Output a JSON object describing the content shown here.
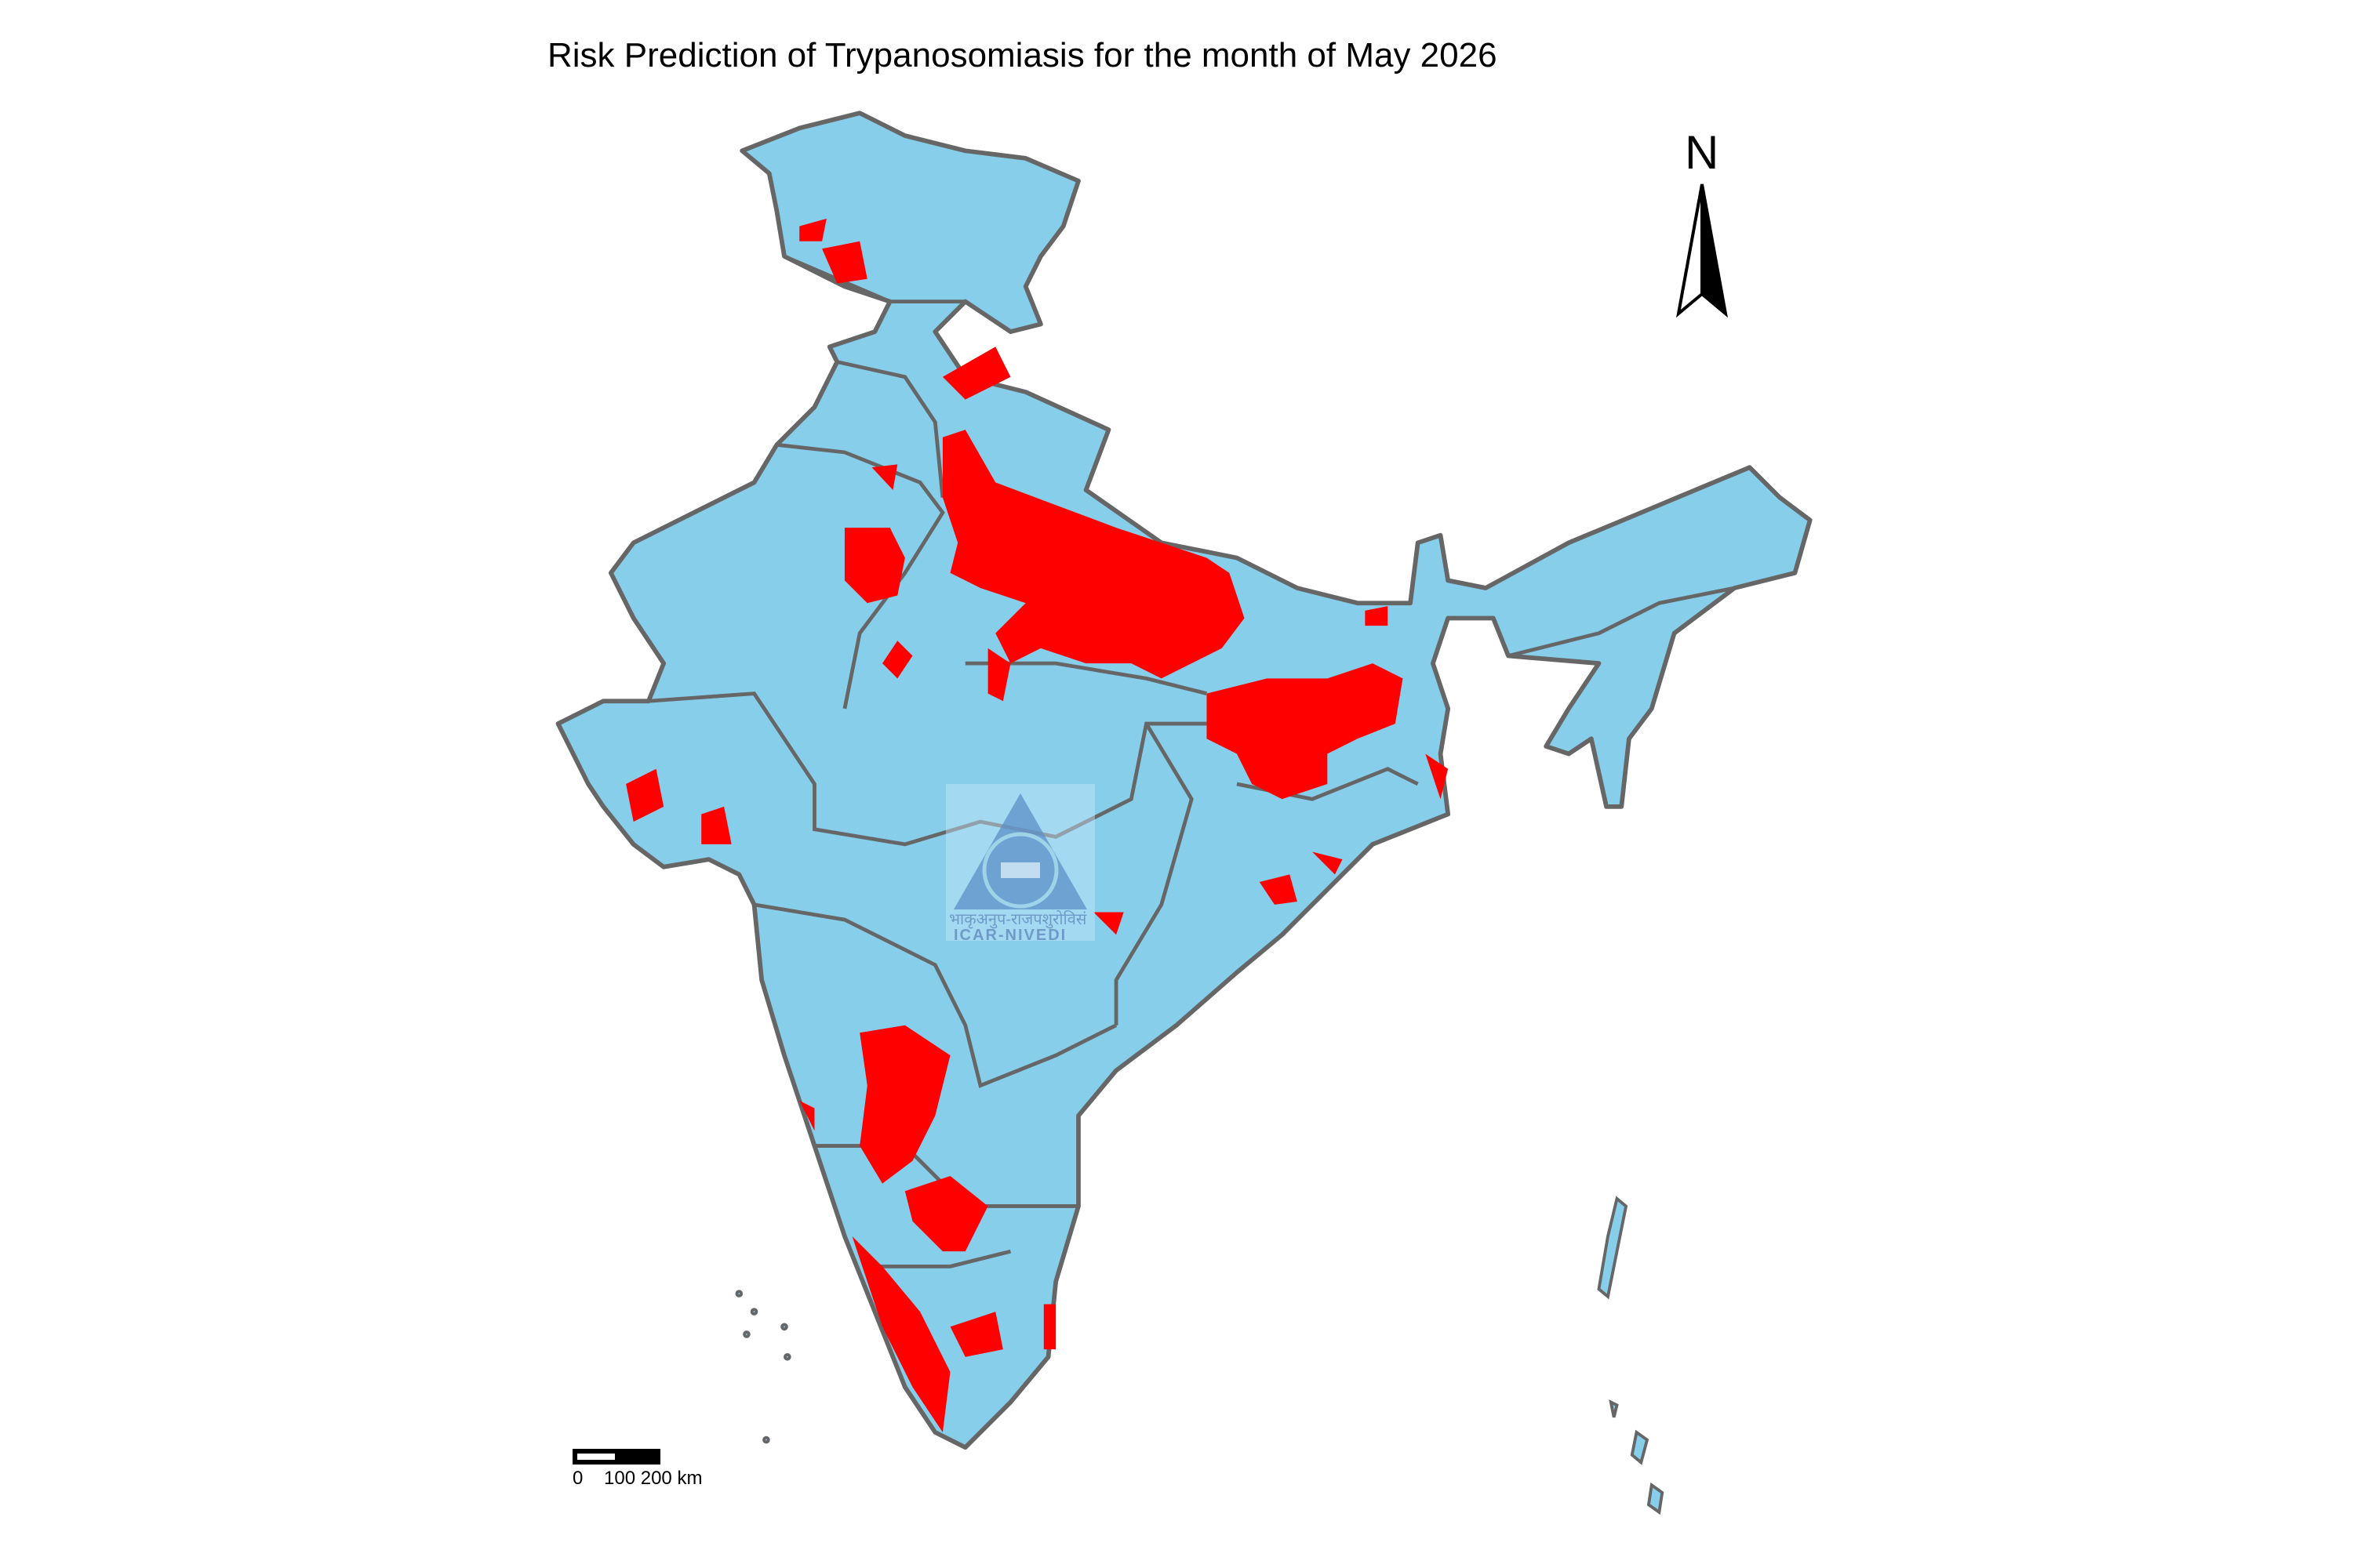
{
  "title": "Risk Prediction of Trypanosomiasis for the month of May 2026",
  "north_arrow": {
    "label": "N"
  },
  "scale_bar": {
    "labels": "0    100 200 km"
  },
  "logo": {
    "hindi": "भाकृअनुप-राजपशुरोविसं",
    "english": "ICAR-NIVEDI"
  },
  "legend_colors": {
    "low_risk": "#87ceeb",
    "high_risk": "#ff0000",
    "border": "#666666"
  }
}
